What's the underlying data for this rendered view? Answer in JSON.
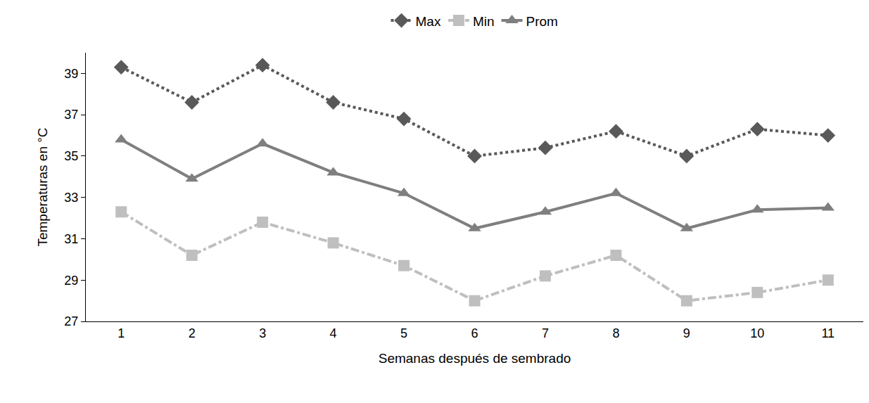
{
  "chart_data": {
    "type": "line",
    "x_label": "Semanas después de sembrado",
    "y_label": "Temperaturas en °C",
    "categories": [
      "1",
      "2",
      "3",
      "4",
      "5",
      "6",
      "7",
      "8",
      "9",
      "10",
      "11"
    ],
    "series": [
      {
        "name": "Max",
        "color": "#595959",
        "marker": "diamond",
        "line_style": "dot",
        "values": [
          39.3,
          37.6,
          39.4,
          37.6,
          36.8,
          35.0,
          35.4,
          36.2,
          35.0,
          36.3,
          36.0
        ]
      },
      {
        "name": "Min",
        "color": "#bfbfbf",
        "marker": "square",
        "line_style": "dashdot",
        "values": [
          32.3,
          30.2,
          31.8,
          30.8,
          29.7,
          28.0,
          29.2,
          30.2,
          28.0,
          28.4,
          29.0
        ]
      },
      {
        "name": "Prom",
        "color": "#7f7f7f",
        "marker": "triangle-up",
        "line_style": "solid",
        "values": [
          35.8,
          33.9,
          35.6,
          34.2,
          33.2,
          31.5,
          32.3,
          33.2,
          31.5,
          32.4,
          32.5
        ]
      }
    ],
    "ylim": [
      27,
      40
    ],
    "yticks": [
      27,
      29,
      31,
      33,
      35,
      37,
      39
    ],
    "grid": false,
    "legend": "top"
  }
}
